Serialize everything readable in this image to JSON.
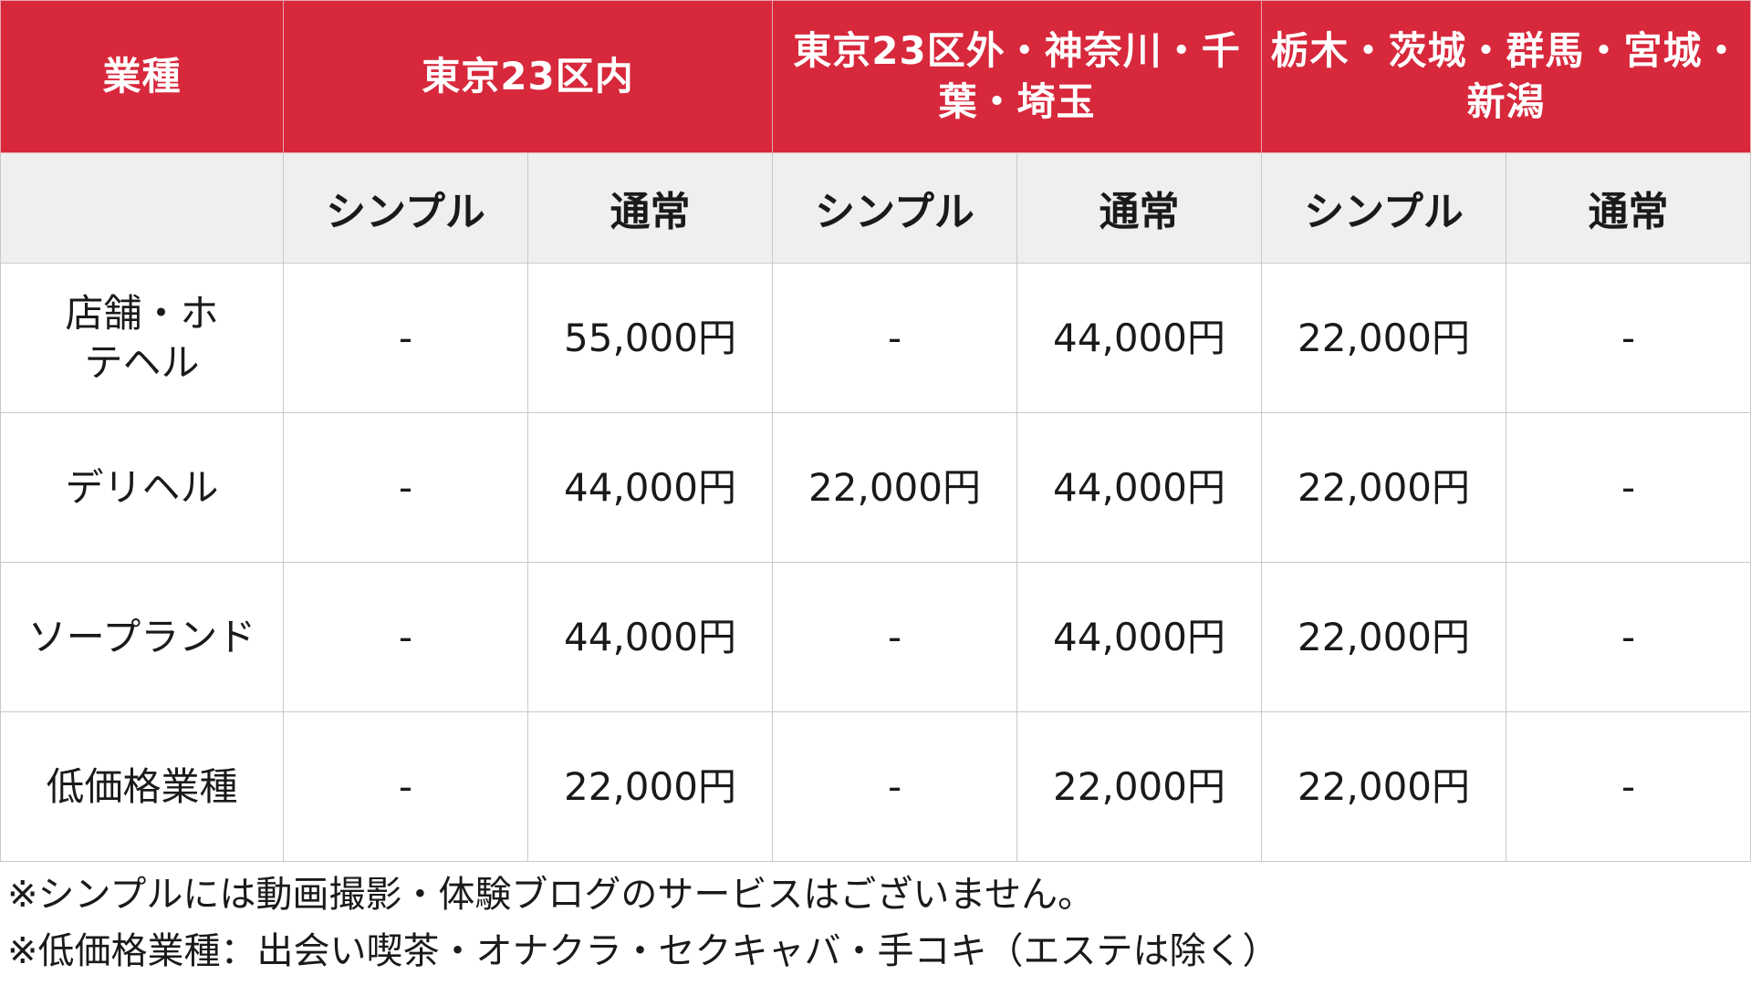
{
  "header": {
    "category_label": "業種",
    "regions": [
      {
        "label": "東京23区内"
      },
      {
        "label": "東京23区外・神奈川・千葉・埼玉"
      },
      {
        "label": "栃木・茨城・群馬・宮城・新潟"
      }
    ],
    "plans": [
      "シンプル",
      "通常",
      "シンプル",
      "通常",
      "シンプル",
      "通常"
    ]
  },
  "rows": [
    {
      "category": "店舗・ホテヘル",
      "values": [
        "-",
        "55,000円",
        "-",
        "44,000円",
        "22,000円",
        "-"
      ]
    },
    {
      "category": "デリヘル",
      "values": [
        "-",
        "44,000円",
        "22,000円",
        "44,000円",
        "22,000円",
        "-"
      ]
    },
    {
      "category": "ソープランド",
      "values": [
        "-",
        "44,000円",
        "-",
        "44,000円",
        "22,000円",
        "-"
      ]
    },
    {
      "category": "低価格業種",
      "values": [
        "-",
        "22,000円",
        "-",
        "22,000円",
        "22,000円",
        "-"
      ]
    }
  ],
  "notes": [
    "※シンプルには動画撮影・体験ブログのサービスはございません。",
    "※低価格業種：出会い喫茶・オナクラ・セクキャバ・手コキ（エステは除く）"
  ],
  "colors": {
    "header_bg": "#d7283c",
    "subheader_bg": "#efefef",
    "border": "#c9c9c9"
  }
}
